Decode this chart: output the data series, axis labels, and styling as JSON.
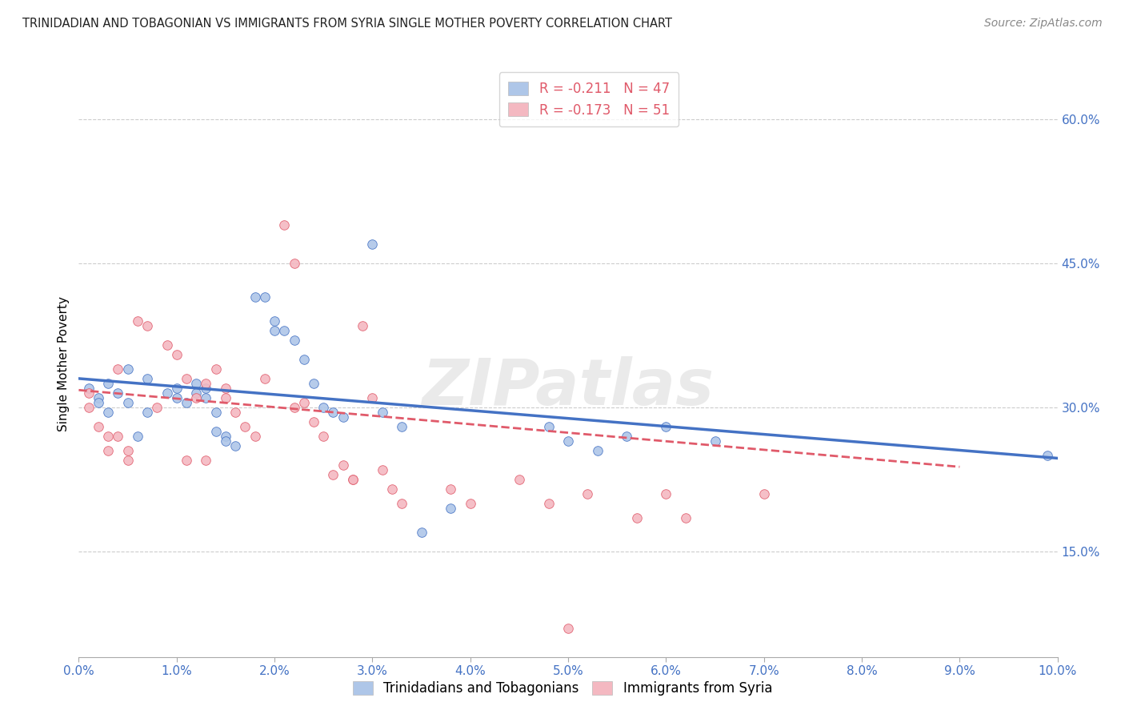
{
  "title": "TRINIDADIAN AND TOBAGONIAN VS IMMIGRANTS FROM SYRIA SINGLE MOTHER POVERTY CORRELATION CHART",
  "source": "Source: ZipAtlas.com",
  "ylabel": "Single Mother Poverty",
  "ytick_labels": [
    "15.0%",
    "30.0%",
    "45.0%",
    "60.0%"
  ],
  "ytick_values": [
    0.15,
    0.3,
    0.45,
    0.6
  ],
  "xlim": [
    0.0,
    0.1
  ],
  "ylim": [
    0.04,
    0.65
  ],
  "legend_r1": "R = -0.211",
  "legend_n1": "N = 47",
  "legend_r2": "R = -0.173",
  "legend_n2": "N = 51",
  "series1_color": "#aec6e8",
  "series2_color": "#f4b8c1",
  "line1_color": "#4472c4",
  "line2_color": "#e05a6a",
  "watermark": "ZIPatlas",
  "blue_scatter": [
    [
      0.001,
      0.32
    ],
    [
      0.002,
      0.31
    ],
    [
      0.002,
      0.305
    ],
    [
      0.003,
      0.325
    ],
    [
      0.003,
      0.295
    ],
    [
      0.004,
      0.315
    ],
    [
      0.005,
      0.34
    ],
    [
      0.005,
      0.305
    ],
    [
      0.006,
      0.27
    ],
    [
      0.007,
      0.33
    ],
    [
      0.007,
      0.295
    ],
    [
      0.009,
      0.315
    ],
    [
      0.01,
      0.32
    ],
    [
      0.01,
      0.31
    ],
    [
      0.011,
      0.305
    ],
    [
      0.012,
      0.325
    ],
    [
      0.012,
      0.315
    ],
    [
      0.013,
      0.31
    ],
    [
      0.013,
      0.32
    ],
    [
      0.014,
      0.295
    ],
    [
      0.014,
      0.275
    ],
    [
      0.015,
      0.27
    ],
    [
      0.015,
      0.265
    ],
    [
      0.016,
      0.26
    ],
    [
      0.018,
      0.415
    ],
    [
      0.019,
      0.415
    ],
    [
      0.02,
      0.39
    ],
    [
      0.02,
      0.38
    ],
    [
      0.021,
      0.38
    ],
    [
      0.022,
      0.37
    ],
    [
      0.023,
      0.35
    ],
    [
      0.024,
      0.325
    ],
    [
      0.025,
      0.3
    ],
    [
      0.026,
      0.295
    ],
    [
      0.027,
      0.29
    ],
    [
      0.03,
      0.47
    ],
    [
      0.031,
      0.295
    ],
    [
      0.033,
      0.28
    ],
    [
      0.035,
      0.17
    ],
    [
      0.038,
      0.195
    ],
    [
      0.048,
      0.28
    ],
    [
      0.05,
      0.265
    ],
    [
      0.053,
      0.255
    ],
    [
      0.056,
      0.27
    ],
    [
      0.06,
      0.28
    ],
    [
      0.065,
      0.265
    ],
    [
      0.099,
      0.25
    ]
  ],
  "pink_scatter": [
    [
      0.001,
      0.315
    ],
    [
      0.001,
      0.3
    ],
    [
      0.002,
      0.28
    ],
    [
      0.003,
      0.27
    ],
    [
      0.003,
      0.255
    ],
    [
      0.004,
      0.34
    ],
    [
      0.004,
      0.27
    ],
    [
      0.005,
      0.255
    ],
    [
      0.005,
      0.245
    ],
    [
      0.006,
      0.39
    ],
    [
      0.007,
      0.385
    ],
    [
      0.008,
      0.3
    ],
    [
      0.009,
      0.365
    ],
    [
      0.01,
      0.355
    ],
    [
      0.011,
      0.245
    ],
    [
      0.011,
      0.33
    ],
    [
      0.012,
      0.31
    ],
    [
      0.013,
      0.245
    ],
    [
      0.013,
      0.325
    ],
    [
      0.014,
      0.34
    ],
    [
      0.015,
      0.32
    ],
    [
      0.015,
      0.31
    ],
    [
      0.016,
      0.295
    ],
    [
      0.017,
      0.28
    ],
    [
      0.018,
      0.27
    ],
    [
      0.019,
      0.33
    ],
    [
      0.021,
      0.49
    ],
    [
      0.022,
      0.45
    ],
    [
      0.022,
      0.3
    ],
    [
      0.023,
      0.305
    ],
    [
      0.024,
      0.285
    ],
    [
      0.025,
      0.27
    ],
    [
      0.026,
      0.23
    ],
    [
      0.027,
      0.24
    ],
    [
      0.028,
      0.225
    ],
    [
      0.028,
      0.225
    ],
    [
      0.029,
      0.385
    ],
    [
      0.03,
      0.31
    ],
    [
      0.031,
      0.235
    ],
    [
      0.032,
      0.215
    ],
    [
      0.033,
      0.2
    ],
    [
      0.038,
      0.215
    ],
    [
      0.04,
      0.2
    ],
    [
      0.045,
      0.225
    ],
    [
      0.048,
      0.2
    ],
    [
      0.052,
      0.21
    ],
    [
      0.057,
      0.185
    ],
    [
      0.06,
      0.21
    ],
    [
      0.062,
      0.185
    ],
    [
      0.07,
      0.21
    ],
    [
      0.05,
      0.07
    ]
  ],
  "line1_x": [
    0.0,
    0.1
  ],
  "line1_y": [
    0.33,
    0.247
  ],
  "line2_x": [
    0.0,
    0.09
  ],
  "line2_y": [
    0.318,
    0.238
  ],
  "background_color": "#ffffff",
  "grid_color": "#cccccc",
  "title_color": "#222222",
  "axis_label_color": "#4472c4",
  "marker_size": 70
}
